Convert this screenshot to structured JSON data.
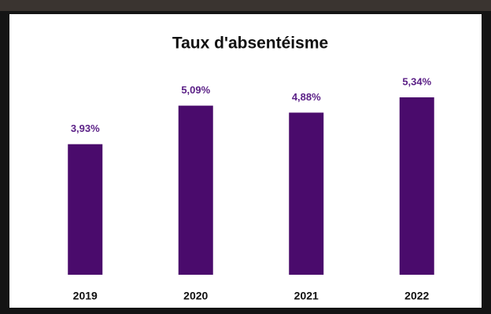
{
  "chart_data": {
    "type": "bar",
    "title": "Taux d'absentéisme",
    "categories": [
      "2019",
      "2020",
      "2021",
      "2022"
    ],
    "values": [
      3.93,
      5.09,
      4.88,
      5.34
    ],
    "value_labels": [
      "3,93%",
      "5,09%",
      "4,88%",
      "5,34%"
    ],
    "color": "#4a0b6c"
  }
}
